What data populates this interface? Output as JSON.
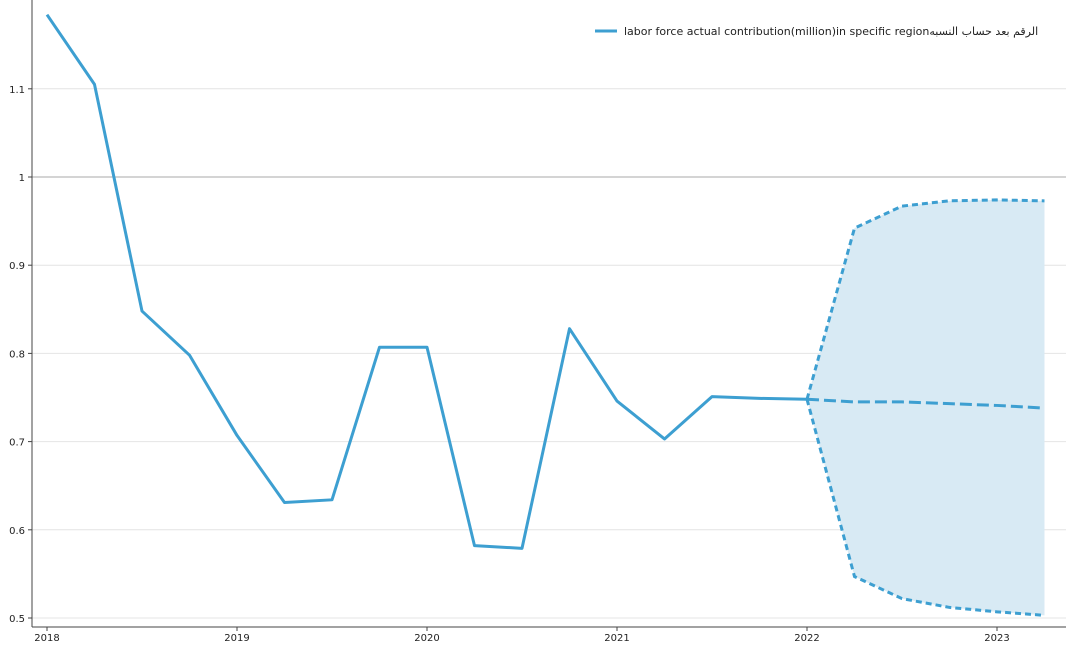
{
  "chart_data": {
    "type": "line",
    "title": "",
    "xlabel": "",
    "ylabel": "",
    "xlim": [
      2018.0,
      2023.33
    ],
    "ylim": [
      0.49,
      1.19
    ],
    "x_ticks": [
      {
        "value": 2018,
        "label": "2018"
      },
      {
        "value": 2019,
        "label": "2019"
      },
      {
        "value": 2020,
        "label": "2020"
      },
      {
        "value": 2021,
        "label": "2021"
      },
      {
        "value": 2022,
        "label": "2022"
      },
      {
        "value": 2023,
        "label": "2023"
      }
    ],
    "y_ticks": [
      {
        "value": 0.5,
        "label": "0.5"
      },
      {
        "value": 0.6,
        "label": "0.6"
      },
      {
        "value": 0.7,
        "label": "0.7"
      },
      {
        "value": 0.8,
        "label": "0.8"
      },
      {
        "value": 0.9,
        "label": "0.9"
      },
      {
        "value": 1.0,
        "label": "1"
      },
      {
        "value": 1.1,
        "label": "1.1"
      }
    ],
    "reference_line": 1.0,
    "grid": "horizontal",
    "legend_position": "top-right",
    "color": "#3d9fd1",
    "band_color": "#d8eaf4",
    "series": [
      {
        "name": "labor force actual contribution(million)in specific regionالرقم بعد حساب النسبه",
        "x": [
          2018.0,
          2018.25,
          2018.5,
          2018.75,
          2019.0,
          2019.25,
          2019.5,
          2019.75,
          2020.0,
          2020.25,
          2020.5,
          2020.75,
          2021.0,
          2021.25,
          2021.5,
          2021.75,
          2022.0
        ],
        "y": [
          1.184,
          1.105,
          0.848,
          0.798,
          0.707,
          0.631,
          0.634,
          0.807,
          0.807,
          0.582,
          0.579,
          0.828,
          0.746,
          0.703,
          0.751,
          0.749,
          0.748
        ]
      }
    ],
    "forecast": {
      "x": [
        2022.0,
        2022.25,
        2022.5,
        2022.75,
        2023.0,
        2023.25
      ],
      "mean": [
        0.748,
        0.745,
        0.745,
        0.743,
        0.741,
        0.738
      ],
      "upper": [
        0.748,
        0.942,
        0.967,
        0.973,
        0.974,
        0.973
      ],
      "lower": [
        0.748,
        0.547,
        0.522,
        0.512,
        0.507,
        0.503
      ]
    }
  }
}
